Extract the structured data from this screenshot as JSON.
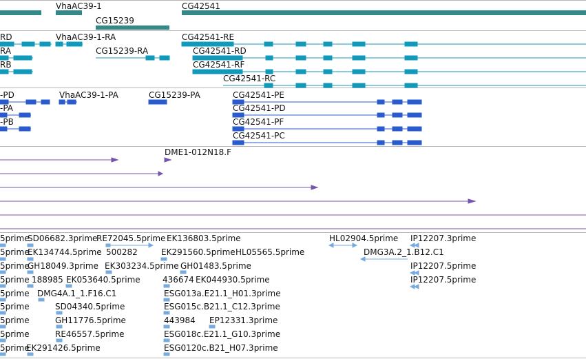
{
  "colors": {
    "gene": "#338888",
    "transcript": "#1199bb",
    "cds": "#2a5bcc",
    "clone": "#7755aa",
    "est": "#77aadd"
  },
  "gene_track": {
    "labels": {
      "g1": "VhaAC39-1",
      "g2": "CG15239",
      "g3": "CG42541"
    }
  },
  "transcript_track": {
    "labels": {
      "t1": "RD",
      "t2": "VhaAC39-1-RA",
      "t3": "CG42541-RE",
      "t4": "RA",
      "t5": "CG15239-RA",
      "t6": "CG42541-RD",
      "t7": "RB",
      "t8": "CG42541-RF",
      "t9": "CG42541-RC"
    }
  },
  "cds_track": {
    "labels": {
      "p1": "-PD",
      "p2": "VhaAC39-1-PA",
      "p3": "CG15239-PA",
      "p4": "CG42541-PE",
      "p5": "-PA",
      "p6": "CG42541-PD",
      "p7": "-PB",
      "p8": "CG42541-PF",
      "p9": "CG42541-PC"
    }
  },
  "clone_track": {
    "labels": {
      "c1": "DME1-012N18.F"
    }
  },
  "est_track": {
    "labels": {
      "e01": "5prime",
      "e02": "SD06682.3prime",
      "e03": "RE72045.5prime",
      "e04": "EK136803.5prime",
      "e05": "HL02904.5prime",
      "e06": "IP12207.3prime",
      "e07": "5prime",
      "e08": "EK134744.5prime",
      "e09": "500282",
      "e10": "EK291560.5prime",
      "e11": "HL05565.5prime",
      "e12": "DMG3A.2_1.B12.C1",
      "e13": "5prime",
      "e14": "GH18049.3prime",
      "e15": "EK303234.5prime",
      "e16": "GH01483.5prime",
      "e17": "IP12207.5prime",
      "e18": "5prime",
      "e19": "188985",
      "e20": "EK053640.5prime",
      "e21": "436674",
      "e22": "EK044930.5prime",
      "e23": "IP12207.5prime",
      "e24": "5prime",
      "e25": "DMG4A.1_1.F16.C1",
      "e26": "ESG013a.E21.1_H01.3prime",
      "e27": "5prime",
      "e28": "SD04340.5prime",
      "e29": "ESG015c.B21.1_C12.3prime",
      "e30": "5prime",
      "e31": "GH11776.5prime",
      "e32": "443984",
      "e33": "EP12331.3prime",
      "e34": "5prime",
      "e35": "RE46557.5prime",
      "e36": "ESG018c.E21.1_G10.3prime",
      "e37": "5prime",
      "e38": "EK291426.5prime",
      "e39": "ESG0120c.B21_H07.3prime"
    }
  }
}
